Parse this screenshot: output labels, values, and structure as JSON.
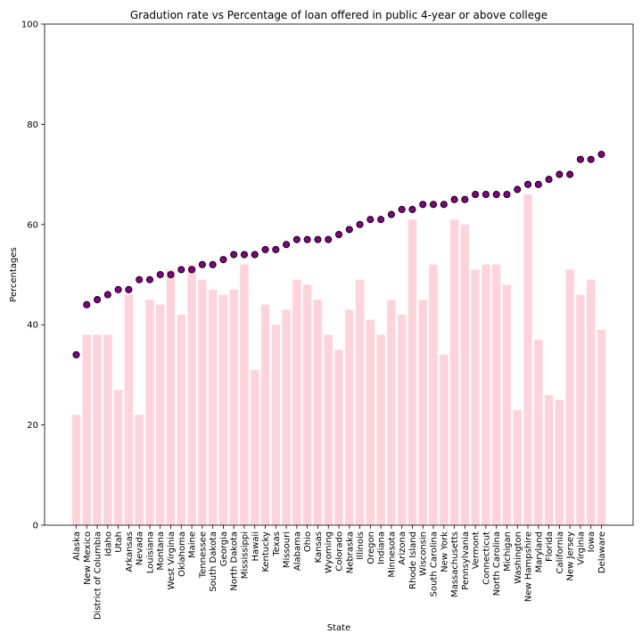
{
  "chart_data": {
    "type": "bar",
    "title": "Gradution rate vs Percentage of loan offered in public 4-year or above college",
    "xlabel": "State",
    "ylabel": "Percentages",
    "ylim": [
      0,
      100
    ],
    "yticks": [
      0,
      20,
      40,
      60,
      80,
      100
    ],
    "grid": false,
    "categories": [
      "Alaska",
      "New Mexico",
      "District of Columbia",
      "Idaho",
      "Utah",
      "Arkansas",
      "Nevada",
      "Louisiana",
      "Montana",
      "West Virginia",
      "Oklahoma",
      "Maine",
      "Tennessee",
      "South Dakota",
      "Georgia",
      "North Dakota",
      "Mississippi",
      "Hawaii",
      "Kentucky",
      "Texas",
      "Missouri",
      "Alabama",
      "Ohio",
      "Kansas",
      "Wyoming",
      "Colorado",
      "Nebraska",
      "Illinois",
      "Oregon",
      "Indiana",
      "Minnesota",
      "Arizona",
      "Rhode Island",
      "Wisconsin",
      "South Carolina",
      "New York",
      "Massachusetts",
      "Pennsylvania",
      "Vermont",
      "Connecticut",
      "North Carolina",
      "Michigan",
      "Washington",
      "New Hampshire",
      "Maryland",
      "Florida",
      "California",
      "New Jersey",
      "Virginia",
      "Iowa",
      "Delaware"
    ],
    "series": [
      {
        "kind": "bar",
        "color": "#ffc0cb",
        "values": [
          22,
          38,
          38,
          38,
          27,
          46,
          22,
          45,
          44,
          51,
          42,
          52,
          49,
          47,
          46,
          47,
          52,
          31,
          44,
          40,
          43,
          49,
          48,
          45,
          38,
          35,
          43,
          49,
          41,
          38,
          45,
          42,
          61,
          45,
          52,
          34,
          61,
          60,
          51,
          52,
          52,
          48,
          23,
          66,
          37,
          26,
          25,
          51,
          46,
          49,
          39
        ]
      },
      {
        "kind": "scatter",
        "color": "#800080",
        "edgecolor": "#000000",
        "values": [
          34,
          44,
          45,
          46,
          47,
          47,
          49,
          49,
          50,
          50,
          51,
          51,
          52,
          52,
          53,
          54,
          54,
          54,
          55,
          55,
          56,
          57,
          57,
          57,
          57,
          58,
          59,
          60,
          61,
          61,
          62,
          63,
          63,
          64,
          64,
          64,
          65,
          65,
          66,
          66,
          66,
          66,
          67,
          68,
          68,
          69,
          70,
          70,
          73,
          73,
          74
        ]
      }
    ]
  }
}
